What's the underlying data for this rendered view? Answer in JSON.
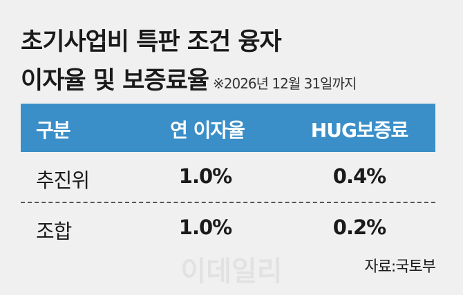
{
  "header": {
    "title_line1": "초기사업비 특판 조건 융자",
    "title_line2": "이자율 및 보증료율",
    "note": "※2026년 12월 31일까지"
  },
  "table": {
    "header": [
      "구분",
      "연 이자율",
      "HUG보증료"
    ],
    "rows": [
      [
        "추진위",
        "1.0%",
        "0.4%"
      ],
      [
        "조합",
        "1.0%",
        "0.2%"
      ]
    ]
  },
  "watermark": "이데일리",
  "source": "자료:국토부"
}
